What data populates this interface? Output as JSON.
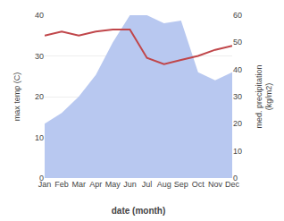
{
  "chart_data": {
    "type": "line",
    "xlabel": "date (month)",
    "ylabel": "max temp (C)",
    "y2label": "med. precipitation\n(kg/m2)",
    "categories": [
      "Jan",
      "Feb",
      "Mar",
      "Apr",
      "May",
      "Jun",
      "Jul",
      "Aug",
      "Sep",
      "Oct",
      "Nov",
      "Dec"
    ],
    "series": [
      {
        "type": "area",
        "color": "#b8c8f0",
        "axis": "y2",
        "values": [
          20.0,
          24.0,
          30.0,
          38.0,
          50.0,
          60.0,
          60.0,
          57.0,
          58.0,
          39.0,
          36.0,
          39.0
        ]
      },
      {
        "type": "line",
        "color": "#c0464a",
        "values": [
          35.0,
          36.0,
          35.0,
          36.0,
          36.5,
          36.5,
          29.5,
          28.0,
          29.0,
          30.0,
          31.5,
          32.5
        ]
      }
    ],
    "ylim": [
      0,
      40
    ],
    "yticks": [
      0,
      10,
      20,
      30,
      40
    ],
    "y2lim": [
      0,
      60
    ],
    "y2ticks": [
      0,
      10,
      20,
      30,
      40,
      50,
      60
    ],
    "grid": true
  }
}
